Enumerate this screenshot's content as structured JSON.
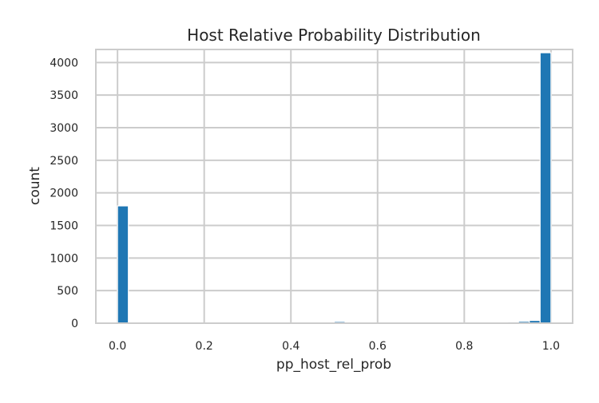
{
  "chart_data": {
    "type": "bar",
    "title": "Host Relative Probability Distribution",
    "xlabel": "pp_host_rel_prob",
    "ylabel": "count",
    "xlim": [
      -0.05,
      1.05
    ],
    "ylim": [
      0,
      4200
    ],
    "x_ticks": [
      "0.0",
      "0.2",
      "0.4",
      "0.6",
      "0.8",
      "1.0"
    ],
    "x_tick_values": [
      0.0,
      0.2,
      0.4,
      0.6,
      0.8,
      1.0
    ],
    "y_ticks": [
      "0",
      "500",
      "1000",
      "1500",
      "2000",
      "2500",
      "3000",
      "3500",
      "4000"
    ],
    "y_tick_values": [
      0,
      500,
      1000,
      1500,
      2000,
      2500,
      3000,
      3500,
      4000
    ],
    "bins": {
      "start": 0.0,
      "width": 0.025
    },
    "values": [
      1800,
      4,
      3,
      2,
      3,
      2,
      2,
      2,
      2,
      2,
      2,
      2,
      2,
      2,
      2,
      2,
      2,
      2,
      12,
      4,
      25,
      6,
      4,
      3,
      3,
      3,
      3,
      2,
      3,
      3,
      4,
      3,
      3,
      3,
      3,
      4,
      20,
      28,
      42,
      4150
    ],
    "color": "#1f77b4",
    "grid": true,
    "background": "#ffffff",
    "spine_color": "#cccccc",
    "grid_color": "#cccccc"
  }
}
